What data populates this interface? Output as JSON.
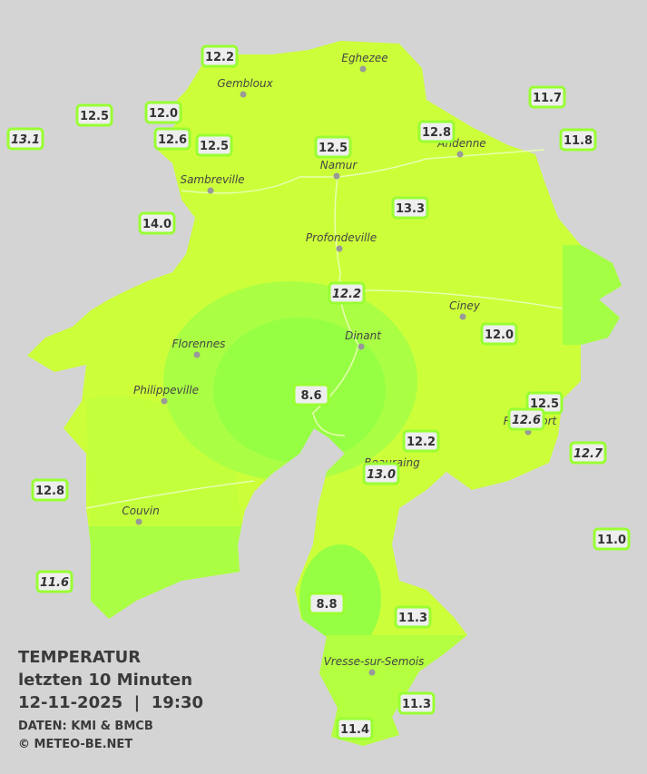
{
  "legend": {
    "title": "TEMPERATUR",
    "subtitle": "letzten 10 Minuten",
    "timestamp": "12-11-2025  |  19:30",
    "source": "DATEN: KMI & BMCB",
    "copyright": "© METEO-BE.NET"
  },
  "cities": [
    "Eghezee",
    "Gembloux",
    "Andenne",
    "Namur",
    "Sambreville",
    "Profondeville",
    "Ciney",
    "Florennes",
    "Dinant",
    "Philippeville",
    "Rochefort",
    "Beauraing",
    "Couvin",
    "Vresse-sur-Semois"
  ],
  "stations": [
    {
      "label": "12.2",
      "italic": false
    },
    {
      "label": "12.5",
      "italic": false
    },
    {
      "label": "12.0",
      "italic": false
    },
    {
      "label": "13.1",
      "italic": true
    },
    {
      "label": "12.6",
      "italic": false
    },
    {
      "label": "12.5",
      "italic": false
    },
    {
      "label": "12.5",
      "italic": false
    },
    {
      "label": "12.8",
      "italic": false
    },
    {
      "label": "11.7",
      "italic": false
    },
    {
      "label": "11.8",
      "italic": false
    },
    {
      "label": "14.0",
      "italic": false
    },
    {
      "label": "13.3",
      "italic": false
    },
    {
      "label": "12.2",
      "italic": true
    },
    {
      "label": "12.0",
      "italic": false
    },
    {
      "label": "8.6",
      "italic": false
    },
    {
      "label": "12.5",
      "italic": false
    },
    {
      "label": "12.6",
      "italic": true
    },
    {
      "label": "12.2",
      "italic": false
    },
    {
      "label": "13.0",
      "italic": true
    },
    {
      "label": "12.7",
      "italic": true
    },
    {
      "label": "12.8",
      "italic": false
    },
    {
      "label": "11.0",
      "italic": false
    },
    {
      "label": "11.6",
      "italic": true
    },
    {
      "label": "8.8",
      "italic": false
    },
    {
      "label": "11.3",
      "italic": false
    },
    {
      "label": "11.3",
      "italic": false
    },
    {
      "label": "11.4",
      "italic": false
    }
  ]
}
